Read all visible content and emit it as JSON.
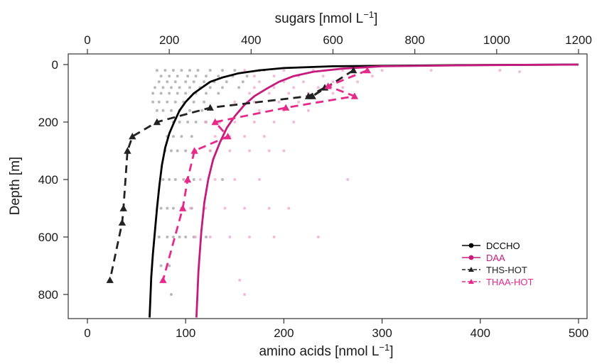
{
  "chart_data": {
    "type": "line",
    "axes": {
      "x_bottom": {
        "label": "amino acids [nmol L",
        "label_sup": "−1",
        "label_end": "]",
        "range": [
          0,
          500
        ],
        "ticks": [
          0,
          100,
          200,
          300,
          400,
          500
        ]
      },
      "x_top": {
        "label": "sugars [nmol L",
        "label_sup": "−1",
        "label_end": "]",
        "range": [
          0,
          1200
        ],
        "ticks": [
          0,
          200,
          400,
          600,
          800,
          1000,
          1200
        ]
      },
      "y": {
        "label": "Depth [m]",
        "range": [
          0,
          800
        ],
        "reversed": true,
        "ticks": [
          0,
          200,
          400,
          600,
          800
        ]
      }
    },
    "legend": {
      "position": "bottom-right",
      "entries": [
        {
          "label": "DCCHO",
          "color": "#000000",
          "dash": "solid",
          "marker": "circle"
        },
        {
          "label": "DAA",
          "color": "#c51b7d",
          "dash": "solid",
          "marker": "circle"
        },
        {
          "label": "THS-HOT",
          "color": "#222222",
          "dash": "dashed",
          "marker": "triangle"
        },
        {
          "label": "THAA-HOT",
          "color": "#e7298a",
          "dash": "dashed",
          "marker": "triangle"
        }
      ]
    },
    "series": [
      {
        "name": "DCCHO",
        "axis": "x_top",
        "color": "#000000",
        "style": "solid",
        "x": [
          1200,
          900,
          600,
          480,
          420,
          370,
          330,
          300,
          280,
          260,
          240,
          225,
          212,
          200,
          190,
          182,
          176,
          170,
          165,
          160,
          156,
          152
        ],
        "y": [
          0,
          2,
          6,
          12,
          20,
          30,
          45,
          60,
          80,
          100,
          130,
          160,
          200,
          240,
          290,
          350,
          420,
          500,
          580,
          660,
          740,
          880
        ]
      },
      {
        "name": "DAA",
        "axis": "x_bottom",
        "color": "#c51b7d",
        "style": "solid",
        "x": [
          500,
          400,
          300,
          260,
          230,
          210,
          195,
          182,
          170,
          160,
          150,
          142,
          135,
          128,
          123,
          119,
          116,
          113,
          111
        ],
        "y": [
          0,
          2,
          6,
          14,
          25,
          40,
          60,
          85,
          110,
          140,
          180,
          220,
          270,
          330,
          400,
          480,
          580,
          720,
          880
        ]
      },
      {
        "name": "THS-HOT",
        "axis": "x_top",
        "color": "#222222",
        "style": "dashed",
        "x": [
          650,
          550,
          580,
          540,
          300,
          170,
          110,
          98,
          88,
          85,
          55
        ],
        "y": [
          20,
          110,
          80,
          110,
          150,
          200,
          250,
          300,
          500,
          550,
          750
        ]
      },
      {
        "name": "THAA-HOT",
        "axis": "x_bottom",
        "color": "#e7298a",
        "style": "dashed",
        "x": [
          285,
          245,
          272,
          202,
          130,
          143,
          109,
          102,
          97,
          77
        ],
        "y": [
          20,
          75,
          110,
          150,
          200,
          250,
          300,
          400,
          500,
          750
        ]
      }
    ],
    "scatter": [
      {
        "name": "DCCHO samples",
        "axis": "x_top",
        "color": "#808080",
        "opacity": 0.55,
        "points": [
          [
            170,
            20
          ],
          [
            190,
            20
          ],
          [
            210,
            20
          ],
          [
            230,
            20
          ],
          [
            250,
            20
          ],
          [
            270,
            20
          ],
          [
            300,
            20
          ],
          [
            330,
            20
          ],
          [
            360,
            20
          ],
          [
            420,
            20
          ],
          [
            180,
            40
          ],
          [
            200,
            40
          ],
          [
            220,
            40
          ],
          [
            245,
            40
          ],
          [
            265,
            40
          ],
          [
            290,
            40
          ],
          [
            320,
            40
          ],
          [
            355,
            40
          ],
          [
            390,
            40
          ],
          [
            175,
            60
          ],
          [
            195,
            60
          ],
          [
            215,
            60
          ],
          [
            240,
            60
          ],
          [
            260,
            60
          ],
          [
            285,
            60
          ],
          [
            310,
            60
          ],
          [
            340,
            60
          ],
          [
            380,
            60
          ],
          [
            165,
            80
          ],
          [
            185,
            80
          ],
          [
            205,
            80
          ],
          [
            225,
            80
          ],
          [
            250,
            80
          ],
          [
            275,
            80
          ],
          [
            300,
            80
          ],
          [
            330,
            80
          ],
          [
            370,
            80
          ],
          [
            160,
            100
          ],
          [
            180,
            100
          ],
          [
            200,
            100
          ],
          [
            220,
            100
          ],
          [
            240,
            100
          ],
          [
            265,
            100
          ],
          [
            290,
            100
          ],
          [
            320,
            100
          ],
          [
            160,
            130
          ],
          [
            175,
            130
          ],
          [
            195,
            130
          ],
          [
            215,
            130
          ],
          [
            235,
            130
          ],
          [
            260,
            130
          ],
          [
            285,
            130
          ],
          [
            170,
            160
          ],
          [
            185,
            160
          ],
          [
            205,
            160
          ],
          [
            225,
            160
          ],
          [
            250,
            160
          ],
          [
            280,
            160
          ],
          [
            210,
            200
          ],
          [
            225,
            200
          ],
          [
            245,
            200
          ],
          [
            265,
            200
          ],
          [
            290,
            200
          ],
          [
            320,
            200
          ],
          [
            195,
            250
          ],
          [
            210,
            250
          ],
          [
            230,
            250
          ],
          [
            255,
            250
          ],
          [
            190,
            300
          ],
          [
            205,
            300
          ],
          [
            220,
            300
          ],
          [
            240,
            300
          ],
          [
            265,
            300
          ],
          [
            300,
            300
          ],
          [
            185,
            400
          ],
          [
            200,
            400
          ],
          [
            215,
            400
          ],
          [
            235,
            400
          ],
          [
            260,
            400
          ],
          [
            330,
            400
          ],
          [
            180,
            500
          ],
          [
            195,
            500
          ],
          [
            210,
            500
          ],
          [
            230,
            500
          ],
          [
            255,
            500
          ],
          [
            175,
            600
          ],
          [
            195,
            600
          ],
          [
            210,
            600
          ],
          [
            225,
            600
          ],
          [
            240,
            600
          ],
          [
            260,
            600
          ],
          [
            290,
            600
          ],
          [
            180,
            700
          ],
          [
            200,
            700
          ],
          [
            205,
            800
          ]
        ]
      },
      {
        "name": "DAA samples",
        "axis": "x_bottom",
        "color": "#f0a0c8",
        "opacity": 0.7,
        "points": [
          [
            160,
            20
          ],
          [
            180,
            20
          ],
          [
            200,
            20
          ],
          [
            230,
            20
          ],
          [
            260,
            20
          ],
          [
            300,
            20
          ],
          [
            350,
            20
          ],
          [
            420,
            20
          ],
          [
            440,
            25
          ],
          [
            170,
            40
          ],
          [
            190,
            40
          ],
          [
            215,
            40
          ],
          [
            240,
            40
          ],
          [
            270,
            40
          ],
          [
            290,
            40
          ],
          [
            175,
            60
          ],
          [
            200,
            60
          ],
          [
            220,
            60
          ],
          [
            250,
            60
          ],
          [
            275,
            60
          ],
          [
            170,
            80
          ],
          [
            190,
            80
          ],
          [
            210,
            80
          ],
          [
            235,
            80
          ],
          [
            260,
            80
          ],
          [
            165,
            100
          ],
          [
            185,
            100
          ],
          [
            205,
            100
          ],
          [
            225,
            100
          ],
          [
            250,
            100
          ],
          [
            150,
            130
          ],
          [
            170,
            130
          ],
          [
            195,
            130
          ],
          [
            215,
            130
          ],
          [
            235,
            130
          ],
          [
            155,
            160
          ],
          [
            175,
            160
          ],
          [
            200,
            160
          ],
          [
            225,
            160
          ],
          [
            120,
            200
          ],
          [
            135,
            200
          ],
          [
            150,
            200
          ],
          [
            170,
            200
          ],
          [
            190,
            200
          ],
          [
            210,
            200
          ],
          [
            130,
            250
          ],
          [
            145,
            250
          ],
          [
            160,
            250
          ],
          [
            180,
            250
          ],
          [
            110,
            300
          ],
          [
            125,
            300
          ],
          [
            145,
            300
          ],
          [
            165,
            300
          ],
          [
            185,
            300
          ],
          [
            200,
            300
          ],
          [
            115,
            400
          ],
          [
            130,
            400
          ],
          [
            150,
            400
          ],
          [
            175,
            400
          ],
          [
            265,
            400
          ],
          [
            105,
            500
          ],
          [
            120,
            500
          ],
          [
            140,
            500
          ],
          [
            160,
            500
          ],
          [
            185,
            500
          ],
          [
            205,
            500
          ],
          [
            110,
            600
          ],
          [
            125,
            600
          ],
          [
            145,
            600
          ],
          [
            165,
            600
          ],
          [
            190,
            600
          ],
          [
            235,
            600
          ],
          [
            155,
            750
          ],
          [
            160,
            800
          ]
        ]
      }
    ]
  }
}
